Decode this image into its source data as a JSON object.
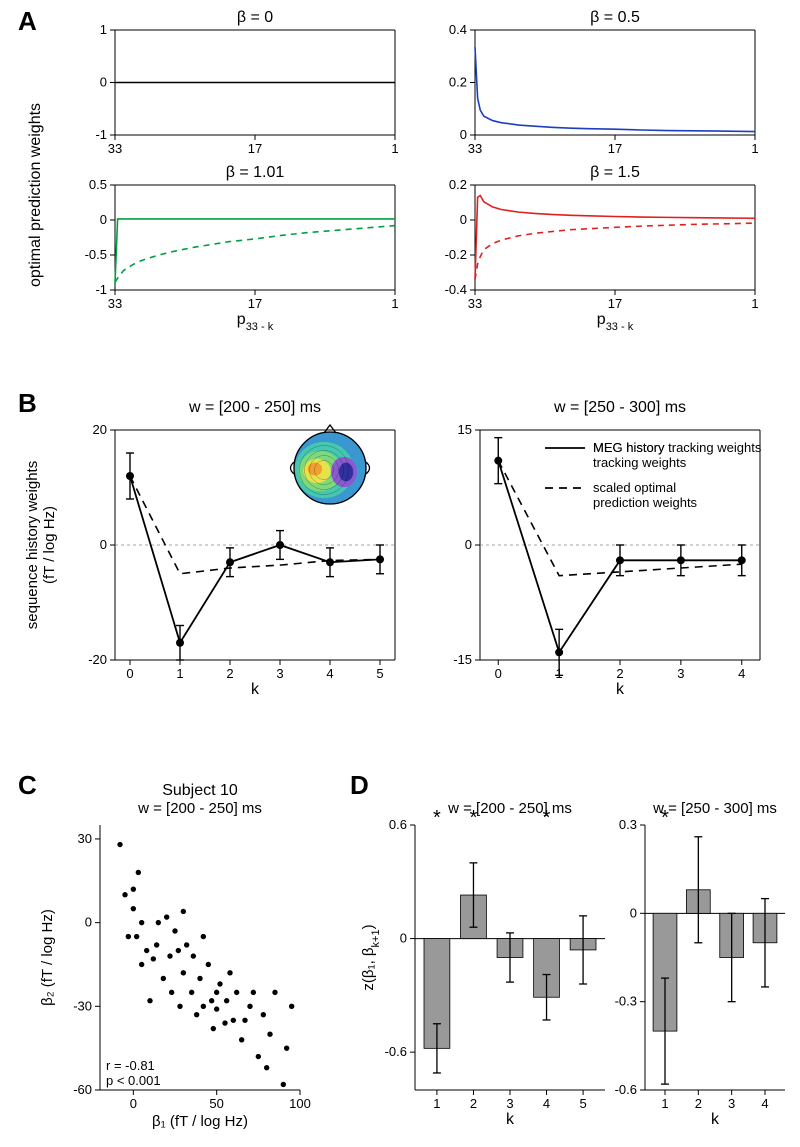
{
  "panelLabels": {
    "A": "A",
    "B": "B",
    "C": "C",
    "D": "D"
  },
  "A": {
    "ylabel": "optimal prediction weights",
    "xlabel_left": "p",
    "xlabel_left_sub": "33 - k",
    "xlabel_right": "p",
    "xlabel_right_sub": "33 - k",
    "subplots": {
      "b0": {
        "title": "β = 0",
        "color": "#000000",
        "ylim": [
          -1,
          1
        ],
        "yticks": [
          -1,
          0,
          1
        ],
        "x": [
          33,
          30,
          27,
          24,
          21,
          17,
          14,
          11,
          8,
          5,
          1
        ],
        "solid_y": [
          0,
          0,
          0,
          0,
          0,
          0,
          0,
          0,
          0,
          0,
          0
        ]
      },
      "b05": {
        "title": "β = 0.5",
        "color": "#1d3fbf",
        "ylim": [
          0,
          0.4
        ],
        "yticks": [
          0,
          0.2,
          0.4
        ],
        "x": [
          33,
          32.7,
          32.4,
          32,
          31,
          30,
          28,
          26,
          24,
          22,
          20,
          17,
          14,
          11,
          8,
          5,
          1
        ],
        "solid_y": [
          0.335,
          0.14,
          0.095,
          0.072,
          0.055,
          0.047,
          0.038,
          0.033,
          0.029,
          0.026,
          0.024,
          0.022,
          0.019,
          0.017,
          0.016,
          0.015,
          0.013
        ]
      },
      "b101": {
        "title": "β = 1.01",
        "color": "#00a040",
        "ylim": [
          -1,
          0.5
        ],
        "yticks": [
          -1,
          -0.5,
          0,
          0.5
        ],
        "x": [
          33,
          32.7,
          32.4,
          32,
          31,
          30,
          28,
          26,
          24,
          22,
          20,
          17,
          14,
          11,
          8,
          5,
          1
        ],
        "solid_y": [
          -0.9,
          0.015,
          0.015,
          0.015,
          0.015,
          0.015,
          0.015,
          0.015,
          0.015,
          0.015,
          0.015,
          0.015,
          0.015,
          0.015,
          0.015,
          0.015,
          0.015
        ],
        "dashed_y": [
          -0.89,
          -0.83,
          -0.78,
          -0.72,
          -0.64,
          -0.58,
          -0.5,
          -0.44,
          -0.39,
          -0.35,
          -0.31,
          -0.27,
          -0.22,
          -0.18,
          -0.15,
          -0.12,
          -0.08
        ]
      },
      "b15": {
        "title": "β = 1.5",
        "color": "#e02020",
        "ylim": [
          -0.4,
          0.2
        ],
        "yticks": [
          -0.4,
          -0.2,
          0,
          0.2
        ],
        "x": [
          33,
          32.7,
          32.4,
          32,
          31,
          30,
          28,
          26,
          24,
          22,
          20,
          17,
          14,
          11,
          8,
          5,
          1
        ],
        "solid_y": [
          -0.34,
          0.13,
          0.14,
          0.105,
          0.075,
          0.06,
          0.045,
          0.037,
          0.031,
          0.027,
          0.024,
          0.02,
          0.017,
          0.015,
          0.013,
          0.012,
          0.01
        ],
        "dashed_y": [
          -0.34,
          -0.25,
          -0.21,
          -0.17,
          -0.135,
          -0.115,
          -0.09,
          -0.075,
          -0.065,
          -0.055,
          -0.05,
          -0.042,
          -0.035,
          -0.03,
          -0.025,
          -0.022,
          -0.018
        ]
      }
    },
    "xticks": [
      33,
      17,
      1
    ]
  },
  "B": {
    "titles": [
      "w = [200 - 250] ms",
      "w = [250 - 300] ms"
    ],
    "xlabel": "k",
    "ylabel": "sequence history weights\n(fT / log Hz)",
    "legend": {
      "solid": "MEG history tracking weights",
      "dashed": "scaled optimal prediction weights"
    },
    "left": {
      "x": [
        0,
        1,
        2,
        3,
        4,
        5
      ],
      "solid_y": [
        12,
        -17,
        -3,
        0,
        -3,
        -2.5
      ],
      "solid_err": [
        4,
        3,
        2.5,
        2.5,
        2.5,
        2.5
      ],
      "dashed_y": [
        12,
        -5,
        -4,
        -3.5,
        -2.7,
        -2.5
      ],
      "ylim": [
        -20,
        20
      ],
      "yticks": [
        -20,
        0,
        20
      ]
    },
    "right": {
      "x": [
        0,
        1,
        2,
        3,
        4
      ],
      "solid_y": [
        11,
        -14,
        -2,
        -2,
        -2
      ],
      "solid_err": [
        3,
        3,
        2,
        2,
        2
      ],
      "dashed_y": [
        11,
        -4,
        -3.5,
        -3,
        -2.5
      ],
      "ylim": [
        -15,
        15
      ],
      "yticks": [
        -15,
        0,
        15
      ]
    },
    "topoColors": [
      "#3a97d0",
      "#45c7b0",
      "#7dd97a",
      "#e6e24a",
      "#f0a030",
      "#8a5ad0",
      "#3030a0"
    ]
  },
  "C": {
    "title1": "Subject 10",
    "title2": "w = [200 - 250] ms",
    "xlabel": "β₁ (fT / log Hz)",
    "ylabel": "β₂ (fT / log Hz)",
    "xlim": [
      -20,
      100
    ],
    "xticks": [
      0,
      50,
      100
    ],
    "ylim": [
      -60,
      35
    ],
    "yticks": [
      -60,
      -30,
      0,
      30
    ],
    "stats": {
      "r": "r = -0.81",
      "p": "p < 0.001"
    },
    "points": [
      [
        -8,
        28
      ],
      [
        -5,
        10
      ],
      [
        -3,
        -5
      ],
      [
        0,
        5
      ],
      [
        0,
        12
      ],
      [
        2,
        -5
      ],
      [
        3,
        18
      ],
      [
        5,
        0
      ],
      [
        5,
        -15
      ],
      [
        8,
        -10
      ],
      [
        10,
        -28
      ],
      [
        12,
        -13
      ],
      [
        14,
        -8
      ],
      [
        15,
        0
      ],
      [
        18,
        -20
      ],
      [
        20,
        2
      ],
      [
        22,
        -12
      ],
      [
        23,
        -25
      ],
      [
        25,
        -3
      ],
      [
        27,
        -10
      ],
      [
        28,
        -30
      ],
      [
        30,
        -18
      ],
      [
        30,
        4
      ],
      [
        32,
        -8
      ],
      [
        35,
        -25
      ],
      [
        36,
        -12
      ],
      [
        38,
        -33
      ],
      [
        40,
        -20
      ],
      [
        42,
        -30
      ],
      [
        42,
        -5
      ],
      [
        45,
        -15
      ],
      [
        47,
        -28
      ],
      [
        48,
        -38
      ],
      [
        50,
        -25
      ],
      [
        50,
        -31
      ],
      [
        52,
        -22
      ],
      [
        55,
        -36
      ],
      [
        56,
        -28
      ],
      [
        58,
        -18
      ],
      [
        60,
        -35
      ],
      [
        62,
        -25
      ],
      [
        65,
        -42
      ],
      [
        67,
        -35
      ],
      [
        70,
        -30
      ],
      [
        72,
        -25
      ],
      [
        75,
        -48
      ],
      [
        78,
        -33
      ],
      [
        80,
        -52
      ],
      [
        82,
        -40
      ],
      [
        85,
        -25
      ],
      [
        90,
        -58
      ],
      [
        92,
        -45
      ],
      [
        95,
        -30
      ]
    ]
  },
  "D": {
    "titles": [
      "w = [200 - 250] ms",
      "w = [250 - 300] ms"
    ],
    "ylabel_left": "z(β₁, β",
    "ylabel_left_sub": "k+1",
    "ylabel_left_tail": ")",
    "xlabel": "k",
    "bar_color": "#999999",
    "left": {
      "x": [
        1,
        2,
        3,
        4,
        5
      ],
      "y": [
        -0.58,
        0.23,
        -0.1,
        -0.31,
        -0.06
      ],
      "err": [
        0.13,
        0.17,
        0.13,
        0.12,
        0.18
      ],
      "sig": [
        true,
        true,
        false,
        true,
        false
      ],
      "ylim": [
        -0.8,
        0.6
      ],
      "yticks": [
        -0.6,
        0,
        0.6
      ]
    },
    "right": {
      "x": [
        1,
        2,
        3,
        4
      ],
      "y": [
        -0.4,
        0.08,
        -0.15,
        -0.1
      ],
      "err": [
        0.18,
        0.18,
        0.15,
        0.15
      ],
      "sig": [
        true,
        false,
        false,
        false
      ],
      "ylim": [
        -0.6,
        0.3
      ],
      "yticks": [
        -0.6,
        -0.3,
        0,
        0.3
      ]
    }
  },
  "style": {
    "axis_color": "#000000",
    "axis_width": 1,
    "tick_len": 5,
    "font_family": "Arial, Helvetica, sans-serif",
    "title_fontsize": 16,
    "label_fontsize": 15,
    "tick_fontsize": 13
  }
}
